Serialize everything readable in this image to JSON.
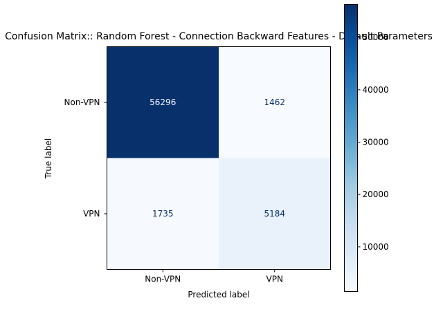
{
  "chart_data": {
    "type": "heatmap",
    "title": "Confusion Matrix:: Random Forest - Connection Backward Features - Default Parameters",
    "xlabel": "Predicted label",
    "ylabel": "True label",
    "x_categories": [
      "Non-VPN",
      "VPN"
    ],
    "y_categories": [
      "Non-VPN",
      "VPN"
    ],
    "values": [
      [
        56296,
        1462
      ],
      [
        1735,
        5184
      ]
    ],
    "colormap": "Blues",
    "colorbar": {
      "min": 1462,
      "max": 56296,
      "ticks": [
        10000,
        20000,
        30000,
        40000,
        50000
      ],
      "tick_labels": [
        "10000",
        "20000",
        "30000",
        "40000",
        "50000"
      ]
    },
    "colors": {
      "dark_cell": "#08306b",
      "light_cell": "#f7fbff",
      "mid_light_cell": "#e5eff9",
      "light_text": "#f7fbff",
      "dark_text": "#08306b"
    }
  }
}
